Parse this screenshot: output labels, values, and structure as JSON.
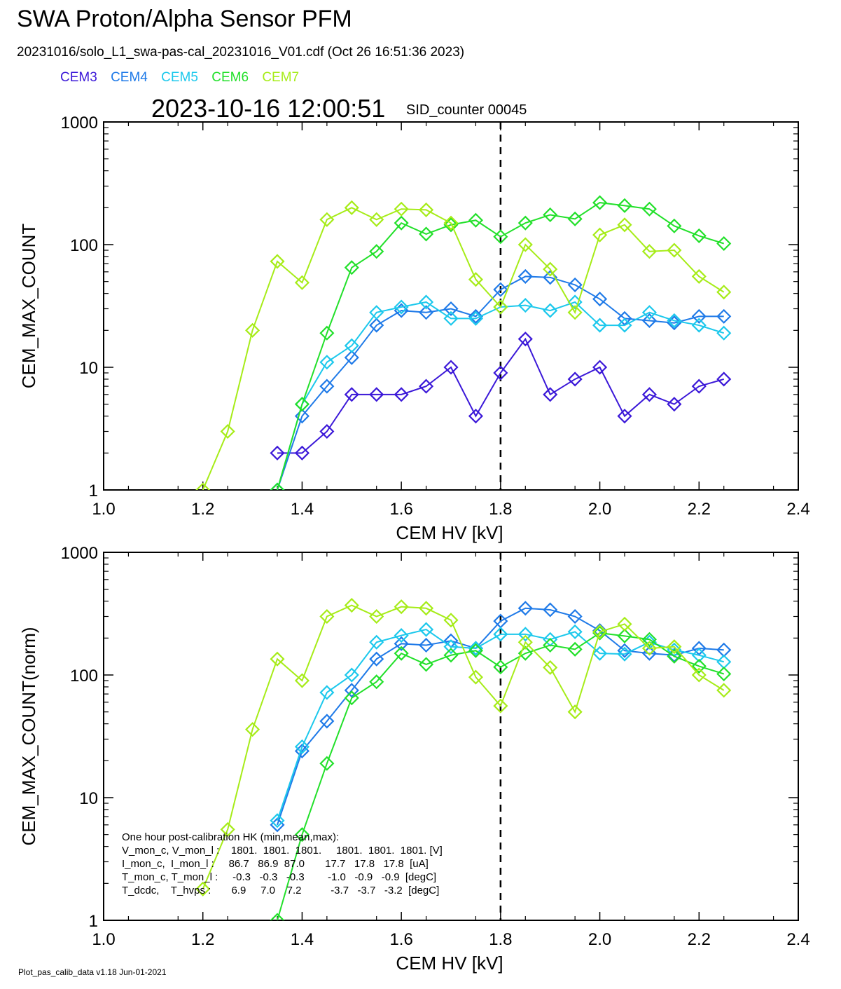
{
  "header": {
    "title": "SWA Proton/Alpha Sensor PFM",
    "subtitle": "20231016/solo_L1_swa-pas-cal_20231016_V01.cdf  (Oct 26 16:51:36 2023)",
    "timestamp": "2023-10-16 12:00:51",
    "sid_counter": "SID_counter 00045"
  },
  "legend": [
    {
      "name": "CEM3",
      "color": "#3b18d8"
    },
    {
      "name": "CEM4",
      "color": "#1f7ae8"
    },
    {
      "name": "CEM5",
      "color": "#1cc8ec"
    },
    {
      "name": "CEM6",
      "color": "#22e02a"
    },
    {
      "name": "CEM7",
      "color": "#a6ec18"
    }
  ],
  "footer": "Plot_pas_calib_data v1.18 Jun-01-2021",
  "hk_box": {
    "lines": [
      "One hour post-calibration HK (min,mean,max):",
      "V_mon_c, V_mon_l :    1801.  1801.  1801.     1801.  1801.  1801. [V]",
      "I_mon_c,  I_mon_l :     86.7   86.9  87.0       17.7   17.8   17.8  [uA]",
      "T_mon_c, T_mon_l :     -0.3   -0.3   -0.3        -1.0   -0.9   -0.9  [degC]",
      "T_dcdc,    T_hvps :       6.9     7.0    7.2          -3.7   -3.7   -3.2  [degC]"
    ]
  },
  "chart_data": [
    {
      "type": "line",
      "xlabel": "CEM HV [kV]",
      "ylabel": "CEM_MAX_COUNT",
      "xlim": [
        1.0,
        2.4
      ],
      "ylim": [
        1,
        1000
      ],
      "yscale": "log",
      "xticks": [
        "1.0",
        "1.2",
        "1.4",
        "1.6",
        "1.8",
        "2.0",
        "2.2",
        "2.4"
      ],
      "yticks": [
        "1",
        "10",
        "100",
        "1000"
      ],
      "vline": 1.8,
      "x": [
        1.2,
        1.25,
        1.3,
        1.35,
        1.4,
        1.45,
        1.5,
        1.55,
        1.6,
        1.65,
        1.7,
        1.75,
        1.8,
        1.85,
        1.9,
        1.95,
        2.0,
        2.05,
        2.1,
        2.15,
        2.2,
        2.25
      ],
      "series": [
        {
          "name": "CEM3",
          "color": "#3b18d8",
          "values": [
            null,
            null,
            null,
            2,
            2,
            3,
            6,
            6,
            6,
            7,
            10,
            4,
            9,
            17,
            6,
            8,
            10,
            4,
            6,
            5,
            7,
            8
          ]
        },
        {
          "name": "CEM4",
          "color": "#1f7ae8",
          "values": [
            null,
            null,
            null,
            1,
            4,
            7,
            12,
            22,
            29,
            28,
            30,
            26,
            43,
            55,
            54,
            47,
            36,
            25,
            24,
            23,
            26,
            26
          ]
        },
        {
          "name": "CEM5",
          "color": "#1cc8ec",
          "values": [
            null,
            null,
            null,
            1,
            5,
            11,
            15,
            28,
            31,
            34,
            25,
            25,
            31,
            32,
            29,
            34,
            22,
            22,
            28,
            24,
            22,
            19
          ]
        },
        {
          "name": "CEM6",
          "color": "#22e02a",
          "values": [
            null,
            null,
            null,
            1,
            5,
            19,
            65,
            88,
            150,
            122,
            145,
            158,
            116,
            150,
            175,
            162,
            220,
            208,
            195,
            142,
            118,
            102
          ]
        },
        {
          "name": "CEM7",
          "color": "#a6ec18",
          "values": [
            1,
            3,
            20,
            73,
            49,
            160,
            200,
            160,
            195,
            192,
            150,
            52,
            31,
            100,
            63,
            28,
            120,
            145,
            88,
            90,
            55,
            41
          ]
        }
      ]
    },
    {
      "type": "line",
      "xlabel": "CEM HV [kV]",
      "ylabel": "CEM_MAX_COUNT(norm)",
      "xlim": [
        1.0,
        2.4
      ],
      "ylim": [
        1,
        1000
      ],
      "yscale": "log",
      "xticks": [
        "1.0",
        "1.2",
        "1.4",
        "1.6",
        "1.8",
        "2.0",
        "2.2",
        "2.4"
      ],
      "yticks": [
        "1",
        "10",
        "100",
        "1000"
      ],
      "vline": 1.8,
      "x": [
        1.2,
        1.25,
        1.3,
        1.35,
        1.4,
        1.45,
        1.5,
        1.55,
        1.6,
        1.65,
        1.7,
        1.75,
        1.8,
        1.85,
        1.9,
        1.95,
        2.0,
        2.05,
        2.1,
        2.15,
        2.2,
        2.25
      ],
      "series": [
        {
          "name": "CEM3",
          "color": "#3b18d8",
          "values": [
            null,
            null,
            null,
            null,
            null,
            null,
            null,
            null,
            null,
            null,
            null,
            null,
            null,
            null,
            null,
            null,
            null,
            null,
            null,
            null,
            null,
            null
          ]
        },
        {
          "name": "CEM4",
          "color": "#1f7ae8",
          "values": [
            null,
            null,
            null,
            6,
            24,
            42,
            75,
            135,
            180,
            175,
            190,
            165,
            275,
            350,
            340,
            300,
            230,
            158,
            150,
            145,
            165,
            160
          ]
        },
        {
          "name": "CEM5",
          "color": "#1cc8ec",
          "values": [
            null,
            null,
            null,
            6.5,
            26,
            72,
            100,
            185,
            210,
            235,
            170,
            165,
            215,
            215,
            195,
            225,
            150,
            148,
            185,
            160,
            145,
            128
          ]
        },
        {
          "name": "CEM6",
          "color": "#22e02a",
          "values": [
            null,
            null,
            null,
            1,
            5,
            19,
            65,
            88,
            150,
            122,
            145,
            158,
            116,
            150,
            175,
            162,
            220,
            208,
            195,
            142,
            118,
            102
          ]
        },
        {
          "name": "CEM7",
          "color": "#a6ec18",
          "values": [
            1.8,
            5.5,
            36,
            135,
            90,
            300,
            370,
            300,
            360,
            350,
            280,
            96,
            56,
            185,
            115,
            50,
            225,
            260,
            165,
            170,
            100,
            75
          ]
        }
      ]
    }
  ]
}
